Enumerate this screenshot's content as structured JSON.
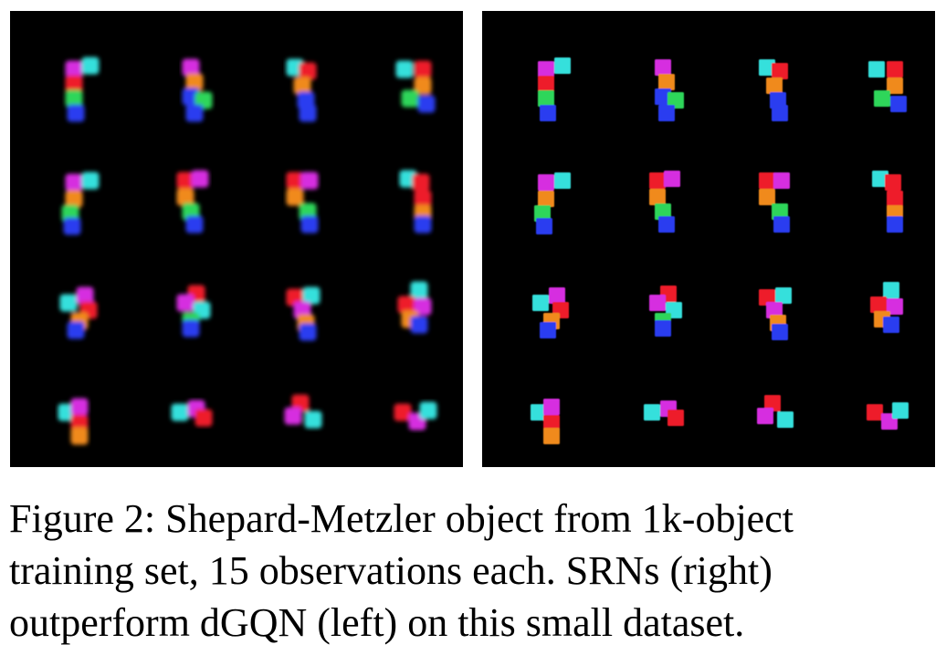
{
  "figure": {
    "left_panel": {
      "method": "dGQN",
      "grid": {
        "rows": 4,
        "cols": 4
      }
    },
    "right_panel": {
      "method": "SRNs",
      "grid": {
        "rows": 4,
        "cols": 4
      }
    },
    "cube_colors": {
      "magenta": "#d62fe0",
      "cyan": "#36e0dc",
      "red": "#ee1f2a",
      "orange": "#f08a1a",
      "green": "#2fd65a",
      "blue": "#2a3cf0",
      "purple": "#8a2ae0"
    },
    "caption_lines": [
      "Figure 2: Shepard-Metzler object from 1k-object",
      "training set, 15 observations each. SRNs (right)",
      "outperform dGQN (left) on this small dataset."
    ]
  }
}
